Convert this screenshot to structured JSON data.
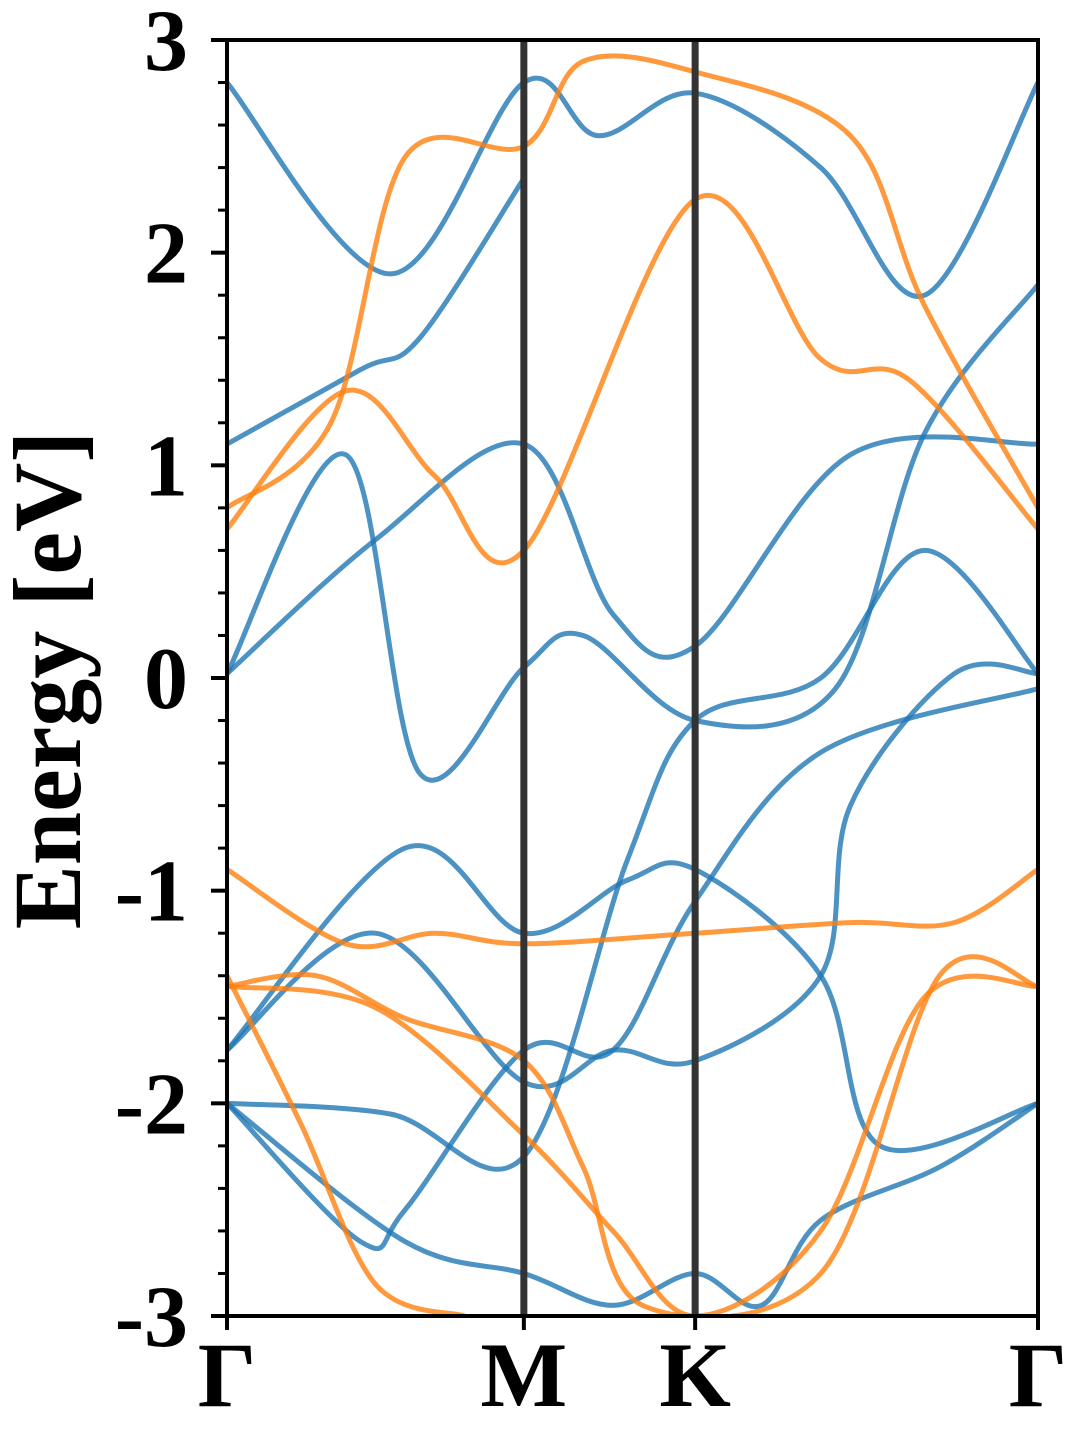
{
  "chart_data": {
    "type": "line",
    "ylabel": "Energy [eV]",
    "xlabel": "",
    "title": "",
    "ylim": [
      -3,
      3
    ],
    "x_ticks": [
      "Γ",
      "M",
      "K",
      "Γ"
    ],
    "x_tick_positions": [
      0,
      1,
      1.577,
      2.732
    ],
    "y_ticks": [
      -3,
      -2,
      -1,
      0,
      1,
      2,
      3
    ],
    "y_tick_labels": [
      "-3",
      "-2",
      "-1",
      "0",
      "1",
      "2",
      "3"
    ],
    "grid": false,
    "legend": "none",
    "colors": {
      "blue": "#1f77b4",
      "orange": "#ff7f0e",
      "kline": "#333333"
    },
    "series": [
      {
        "color": "blue",
        "x": [
          0,
          0.5,
          1,
          1.3,
          1.577,
          2.1,
          2.732
        ],
        "y": [
          0.02,
          0.65,
          1.1,
          0.3,
          0.15,
          1.05,
          1.1
        ]
      },
      {
        "color": "blue",
        "x": [
          0,
          0.45,
          0.65,
          1
        ],
        "y": [
          1.1,
          1.45,
          1.6,
          2.35
        ]
      },
      {
        "color": "blue",
        "x": [
          0,
          0.4,
          0.65,
          1,
          1.2,
          1.577,
          2.05,
          2.35,
          2.732
        ],
        "y": [
          0.02,
          1.05,
          -0.45,
          0.05,
          0.2,
          -0.2,
          -0.05,
          1.15,
          1.85
        ]
      },
      {
        "color": "blue",
        "x": [
          0,
          0.6,
          1,
          1.35,
          1.577,
          2.0,
          2.2,
          2.732
        ],
        "y": [
          -1.75,
          -0.8,
          -1.2,
          -0.95,
          -0.9,
          -1.4,
          -2.2,
          -2.0
        ]
      },
      {
        "color": "blue",
        "x": [
          0,
          0.5,
          1,
          1.3,
          1.577,
          2.0,
          2.1,
          2.45,
          2.732
        ],
        "y": [
          -1.75,
          -1.2,
          -1.9,
          -1.75,
          -1.8,
          -1.4,
          -0.6,
          0.02,
          0.02
        ]
      },
      {
        "color": "blue",
        "x": [
          0,
          0.55,
          1,
          1.35,
          1.577,
          2.0,
          2.35,
          2.732
        ],
        "y": [
          -2.0,
          -2.05,
          -2.25,
          -0.85,
          -0.2,
          0.0,
          0.6,
          0.02
        ]
      },
      {
        "color": "blue",
        "x": [
          0,
          0.45,
          0.6,
          1,
          1.3,
          1.577,
          2.0,
          2.732
        ],
        "y": [
          -2.0,
          -2.65,
          -2.5,
          -1.75,
          -1.75,
          -1.05,
          -0.35,
          -0.05
        ]
      },
      {
        "color": "blue",
        "x": [
          0,
          0.6,
          1,
          1.3,
          1.577,
          1.8,
          2.0,
          2.4,
          2.732
        ],
        "y": [
          -2.0,
          -2.65,
          -2.8,
          -2.95,
          -2.8,
          -2.95,
          -2.55,
          -2.3,
          -2.0
        ]
      },
      {
        "color": "blue",
        "x": [
          0,
          0.55,
          1,
          1.25,
          1.577,
          2.0,
          2.35,
          2.732
        ],
        "y": [
          2.8,
          1.9,
          2.8,
          2.55,
          2.75,
          2.4,
          1.8,
          2.8
        ]
      },
      {
        "color": "orange",
        "x": [
          0,
          0.4,
          0.7,
          1,
          1.577,
          2.0,
          2.3,
          2.732
        ],
        "y": [
          0.7,
          1.35,
          0.95,
          0.6,
          2.25,
          1.5,
          1.4,
          0.7
        ]
      },
      {
        "color": "orange",
        "x": [
          0,
          0.35,
          0.6,
          1,
          1.2,
          1.577,
          2.1,
          2.35,
          2.732
        ],
        "y": [
          0.8,
          1.2,
          2.45,
          2.5,
          2.9,
          2.85,
          2.55,
          1.75,
          0.8
        ]
      },
      {
        "color": "orange",
        "x": [
          0,
          0.4,
          0.7,
          1,
          1.577,
          2.1,
          2.45,
          2.732
        ],
        "y": [
          -0.9,
          -1.25,
          -1.2,
          -1.25,
          -1.2,
          -1.15,
          -1.15,
          -0.9
        ]
      },
      {
        "color": "orange",
        "x": [
          0,
          0.3,
          0.6,
          1,
          1.2,
          1.4,
          2.0,
          2.4,
          2.732
        ],
        "y": [
          -1.45,
          -1.4,
          -1.6,
          -1.8,
          -2.3,
          -2.95,
          -2.8,
          -1.4,
          -1.45
        ]
      },
      {
        "color": "orange",
        "x": [
          0,
          0.5,
          1,
          1.3,
          1.577,
          2.0,
          2.35,
          2.732
        ],
        "y": [
          -1.45,
          -1.55,
          -2.15,
          -2.6,
          -3.0,
          -2.6,
          -1.5,
          -1.45
        ]
      },
      {
        "color": "orange",
        "x": [
          0,
          0.25,
          0.5,
          0.8
        ],
        "y": [
          -1.4,
          -2.1,
          -2.85,
          -3.0
        ]
      }
    ]
  }
}
